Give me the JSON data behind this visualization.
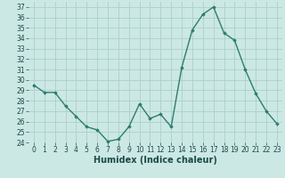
{
  "x": [
    0,
    1,
    2,
    3,
    4,
    5,
    6,
    7,
    8,
    9,
    10,
    11,
    12,
    13,
    14,
    15,
    16,
    17,
    18,
    19,
    20,
    21,
    22,
    23
  ],
  "y": [
    29.5,
    28.8,
    28.8,
    27.5,
    26.5,
    25.5,
    25.2,
    24.1,
    24.3,
    25.5,
    27.7,
    26.3,
    26.7,
    25.5,
    31.2,
    34.8,
    36.3,
    37.0,
    34.5,
    33.8,
    31.0,
    28.7,
    27.0,
    25.8
  ],
  "line_color": "#2e7d6e",
  "marker": "D",
  "marker_size": 1.8,
  "bg_color": "#cce8e4",
  "grid_color": "#aacfcb",
  "xlabel": "Humidex (Indice chaleur)",
  "ylim": [
    24,
    37.5
  ],
  "yticks": [
    24,
    25,
    26,
    27,
    28,
    29,
    30,
    31,
    32,
    33,
    34,
    35,
    36,
    37
  ],
  "xticks": [
    0,
    1,
    2,
    3,
    4,
    5,
    6,
    7,
    8,
    9,
    10,
    11,
    12,
    13,
    14,
    15,
    16,
    17,
    18,
    19,
    20,
    21,
    22,
    23
  ],
  "tick_label_fontsize": 5.5,
  "xlabel_fontsize": 7.0,
  "line_width": 1.0
}
